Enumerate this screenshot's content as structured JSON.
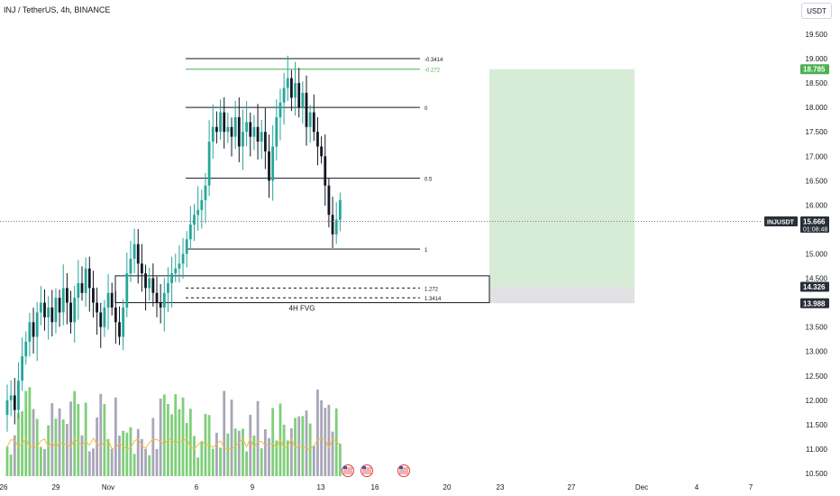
{
  "symbol_title": "INJ / TetherUS, 4h, BINANCE",
  "currency_button": "USDT",
  "colors": {
    "bull_candle": "#26a69a",
    "bear_candle": "#131722",
    "volume_bull": "#7ecf7a",
    "volume_bear": "#a9a6b8",
    "volume_ma": "#f5b942",
    "target_zone": "#d7ecd7",
    "stop_zone": "#e1e1e3",
    "fib_line": "#131722",
    "fib_green": "#4caf50",
    "price_badge": "#2a2e39",
    "target_badge": "#4caf50"
  },
  "price_axis": {
    "ticks": [
      "19.500",
      "19.000",
      "18.500",
      "18.000",
      "17.500",
      "17.000",
      "16.500",
      "16.000",
      "15.500",
      "15.000",
      "14.500",
      "14.000",
      "13.500",
      "13.000",
      "12.500",
      "12.000",
      "11.500",
      "11.000",
      "10.500"
    ],
    "target_label": "18.785",
    "last_price_label": "15.666",
    "countdown": "01:08:48",
    "entry_label": "14.326",
    "stop_label": "13.988",
    "symbol_tag": "INJUSDT"
  },
  "time_axis": {
    "ticks": [
      "26",
      "29",
      "Nov",
      "6",
      "9",
      "13",
      "16",
      "20",
      "23",
      "27",
      "Dec",
      "4",
      "7"
    ]
  },
  "fib_levels": [
    {
      "label": "-0.3414",
      "price": 19.0
    },
    {
      "label": "-0.272",
      "price": 18.785
    },
    {
      "label": "0",
      "price": 18.0
    },
    {
      "label": "0.5",
      "price": 16.55
    },
    {
      "label": "1",
      "price": 15.1
    },
    {
      "label": "1.272",
      "price": 14.3
    },
    {
      "label": "1.3414",
      "price": 14.1
    }
  ],
  "annotations": {
    "fvg_label": "4H FVG"
  },
  "event_markers": [
    {
      "name": "us-flag-icon"
    },
    {
      "name": "us-flag-icon"
    },
    {
      "name": "us-flag-icon"
    }
  ],
  "chart_data": {
    "type": "candlestick",
    "title": "INJ / TetherUS, 4h, BINANCE",
    "ylim": [
      10.4,
      19.6
    ],
    "x_labels": [
      "26",
      "29",
      "Nov",
      "6",
      "9",
      "13",
      "16",
      "20",
      "23",
      "27",
      "Dec",
      "4",
      "7"
    ],
    "closes": [
      12.0,
      12.1,
      11.8,
      12.4,
      12.9,
      13.2,
      13.6,
      13.3,
      13.8,
      14.0,
      13.7,
      13.9,
      13.6,
      14.1,
      13.8,
      14.3,
      14.0,
      13.6,
      14.1,
      14.4,
      14.2,
      14.7,
      14.3,
      14.0,
      13.8,
      13.5,
      13.9,
      14.2,
      13.9,
      13.6,
      13.3,
      13.9,
      14.6,
      14.9,
      15.2,
      14.8,
      14.6,
      14.3,
      14.5,
      14.2,
      14.0,
      13.9,
      14.2,
      14.4,
      14.6,
      14.7,
      14.8,
      15.0,
      15.3,
      15.6,
      15.8,
      15.9,
      16.1,
      16.4,
      17.3,
      17.6,
      17.5,
      17.9,
      17.5,
      17.6,
      17.4,
      17.8,
      17.2,
      17.5,
      17.7,
      17.4,
      17.6,
      17.3,
      17.5,
      17.1,
      16.5,
      17.2,
      17.8,
      18.1,
      18.4,
      18.6,
      18.2,
      18.5,
      18.0,
      18.3,
      17.6,
      17.9,
      17.5,
      17.2,
      17.0,
      16.4,
      15.8,
      15.4,
      15.7,
      16.1
    ],
    "current_price": 15.666,
    "position": {
      "entry": 14.326,
      "target": 18.785,
      "stop": 13.988
    },
    "volume_ma_visible": true
  }
}
